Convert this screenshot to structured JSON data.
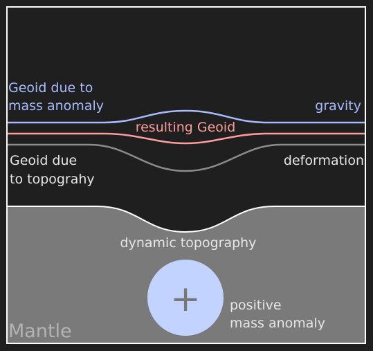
{
  "colors": {
    "background": "#1f1f1f",
    "frame": "#ffffff",
    "mantle": "#7a7a7a",
    "geoid_mass": "#a9bbff",
    "geoid_result": "#ff9c9c",
    "geoid_topo": "#8c8c8c",
    "topography": "#ffffff",
    "mass_anomaly": "#c2d3ff",
    "plus_sign": "#777777",
    "label_light": "#e6e6e6",
    "label_mantle": "#b3b3b3"
  },
  "labels": {
    "geoid_mass_line1": "Geoid due to",
    "geoid_mass_line2": "mass anomaly",
    "gravity": "gravity",
    "resulting_geoid": "resulting Geoid",
    "geoid_topo_line1": "Geoid due",
    "geoid_topo_line2": "to topograhy",
    "deformation": "deformation",
    "dynamic_topography": "dynamic topography",
    "positive_line1": "positive",
    "positive_line2": "mass anomaly",
    "mantle": "Mantle",
    "plus": "+"
  },
  "icons": {
    "mass_anomaly": "plus-circle"
  }
}
